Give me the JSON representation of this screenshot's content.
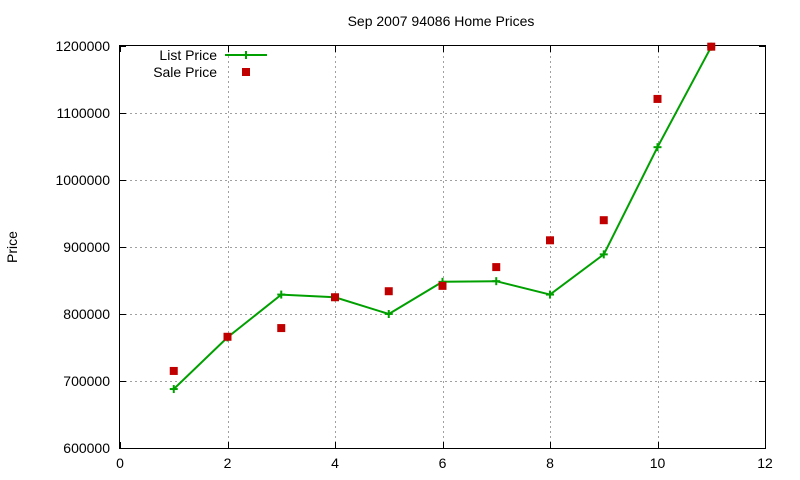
{
  "chart_data": {
    "type": "line",
    "title": "Sep 2007 94086 Home Prices",
    "xlabel": "",
    "ylabel": "Price",
    "xlim": [
      0,
      12
    ],
    "ylim": [
      600000,
      1200000
    ],
    "xticks": [
      0,
      2,
      4,
      6,
      8,
      10,
      12
    ],
    "xtick_labels": [
      "0",
      "2",
      "4",
      "6",
      "8",
      "10",
      "12"
    ],
    "yticks": [
      600000,
      700000,
      800000,
      900000,
      1000000,
      1100000,
      1200000
    ],
    "ytick_labels": [
      "600000",
      "700000",
      "800000",
      "900000",
      "1000000",
      "1100000",
      "1200000"
    ],
    "grid": true,
    "legend_position": "top-left",
    "x": [
      1,
      2,
      3,
      4,
      5,
      6,
      7,
      8,
      9,
      10,
      11
    ],
    "series": [
      {
        "name": "List Price",
        "style": "lines+points",
        "marker": "plus",
        "color": "#00a000",
        "values": [
          688000,
          765000,
          829000,
          825000,
          800000,
          848000,
          849000,
          829000,
          889000,
          1049000,
          1199000
        ]
      },
      {
        "name": "Sale Price",
        "style": "points",
        "marker": "square",
        "color": "#c00000",
        "values": [
          715000,
          766000,
          779000,
          825000,
          834000,
          842000,
          870000,
          910000,
          940000,
          1121000,
          1199000
        ]
      }
    ]
  }
}
